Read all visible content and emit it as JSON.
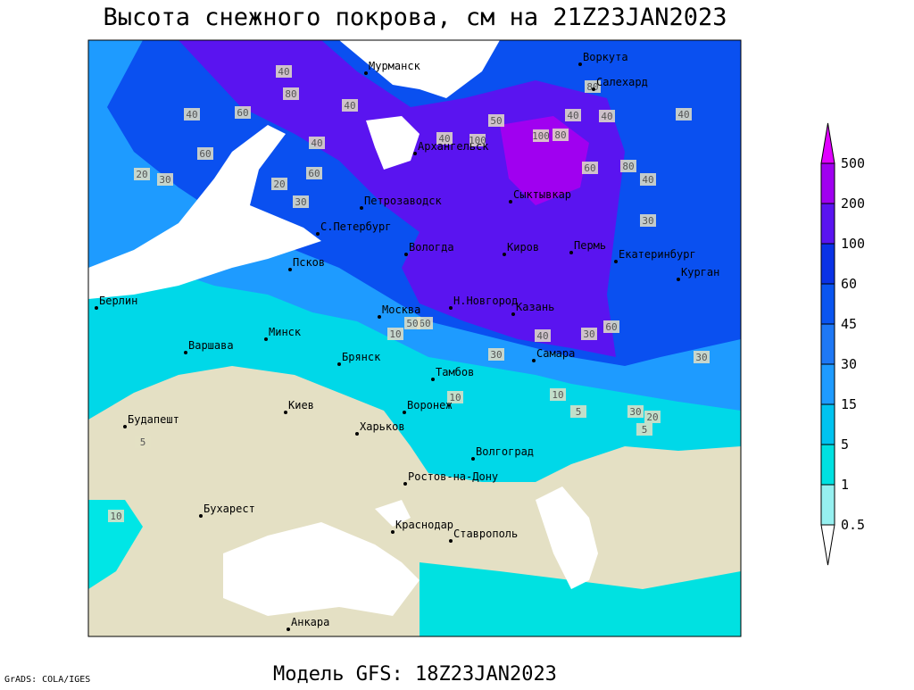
{
  "title": "Высота снежного покрова, см на 21Z23JAN2023",
  "subtitle": "Модель GFS: 18Z23JAN2023",
  "credit": "GrADS: COLA/IGES",
  "colorbar": {
    "levels": [
      0.5,
      1,
      5,
      15,
      30,
      45,
      60,
      100,
      200,
      500
    ],
    "colors": [
      "#ffffff",
      "#96f0f0",
      "#00e1e1",
      "#00c3f0",
      "#1e9bff",
      "#1e78f5",
      "#0a55f0",
      "#0a32e6",
      "#5a14f0",
      "#a000f0",
      "#e000ff"
    ]
  },
  "cities": [
    "Мурманск",
    "Воркута",
    "Салехард",
    "Архангельск",
    "Сыктывкар",
    "Петрозаводск",
    "С.Петербург",
    "Вологда",
    "Киров",
    "Пермь",
    "Екатеринбург",
    "Курган",
    "Псков",
    "Берлин",
    "Москва",
    "Н.Новгород",
    "Казань",
    "Варшава",
    "Минск",
    "Брянск",
    "Тамбов",
    "Самара",
    "Киев",
    "Воронеж",
    "Будапешт",
    "Харьков",
    "Волгоград",
    "Ростов-на-Дону",
    "Бухарест",
    "Краснодар",
    "Ставрополь",
    "Анкара"
  ],
  "contour_labels": [
    40,
    80,
    60,
    40,
    60,
    20,
    30,
    60,
    40,
    40,
    40,
    100,
    100,
    80,
    50,
    40,
    80,
    40,
    40,
    60,
    80,
    40,
    30,
    20,
    30,
    10,
    60,
    50,
    30,
    40,
    60,
    30,
    30,
    10,
    30,
    20,
    5,
    10,
    5,
    5,
    10
  ]
}
